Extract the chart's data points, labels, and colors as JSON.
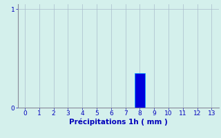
{
  "categories": [
    0,
    1,
    2,
    3,
    4,
    5,
    6,
    7,
    8,
    9,
    10,
    11,
    12,
    13
  ],
  "values": [
    0,
    0,
    0,
    0,
    0,
    0,
    0,
    0,
    0.35,
    0,
    0,
    0,
    0,
    0
  ],
  "bar_color": "#0000dd",
  "bar_edge_color": "#00aaff",
  "background_color": "#d4f0ec",
  "grid_color": "#aabbcc",
  "axis_color": "#888899",
  "text_color": "#0000bb",
  "xlabel": "Précipitations 1h ( mm )",
  "xlim": [
    -0.5,
    13.5
  ],
  "ylim": [
    0,
    1.05
  ],
  "yticks": [
    0,
    1
  ],
  "xticks": [
    0,
    1,
    2,
    3,
    4,
    5,
    6,
    7,
    8,
    9,
    10,
    11,
    12,
    13
  ],
  "xlabel_fontsize": 7.5,
  "tick_fontsize": 6.5,
  "bar_width": 0.75
}
